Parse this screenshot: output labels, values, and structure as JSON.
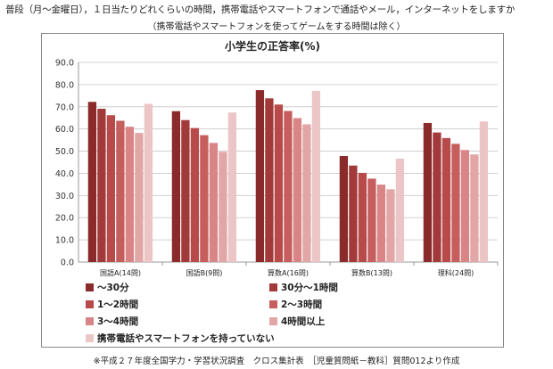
{
  "header": {
    "question": "普段（月〜金曜日），１日当たりどれくらいの時間，携帯電話やスマートフォンで通話やメール，インターネットをしますか",
    "note": "（携帯電話やスマートフォンを使ってゲームをする時間は除く）"
  },
  "source": "※平成２７年度全国学力・学習状況調査　クロス集計表　［児童質問紙－教科］質問012より作成",
  "chart_data": {
    "type": "bar",
    "title": "小学生の正答率(%)",
    "xlabel": "",
    "ylabel": "",
    "ylim": [
      0,
      90
    ],
    "yticks": [
      "0.0",
      "10.0",
      "20.0",
      "30.0",
      "40.0",
      "50.0",
      "60.0",
      "70.0",
      "80.0",
      "90.0"
    ],
    "grid": true,
    "legend_position": "bottom",
    "categories": [
      "国語A(14問)",
      "国語B(9問)",
      "算数A(16問)",
      "算数B(13問)",
      "理科(24問)"
    ],
    "series": [
      {
        "name": "〜30分",
        "color": "#8b2a2a",
        "values": [
          72.2,
          68.0,
          77.5,
          47.8,
          62.7
        ]
      },
      {
        "name": "30分〜1時間",
        "color": "#a33a3a",
        "values": [
          69.1,
          64.0,
          73.8,
          43.5,
          58.4
        ]
      },
      {
        "name": "1〜2時間",
        "color": "#b84a4a",
        "values": [
          66.2,
          60.4,
          71.0,
          40.2,
          55.9
        ]
      },
      {
        "name": "2〜3時間",
        "color": "#c65e5e",
        "values": [
          63.7,
          57.2,
          68.1,
          37.6,
          53.3
        ]
      },
      {
        "name": "3〜4時間",
        "color": "#d98585",
        "values": [
          61.0,
          53.7,
          64.9,
          34.9,
          50.5
        ]
      },
      {
        "name": "4時間以上",
        "color": "#e2a6a6",
        "values": [
          58.2,
          49.7,
          62.1,
          32.8,
          48.5
        ]
      },
      {
        "name": "携帯電話やスマートフォンを持っていない",
        "color": "#ecc6c6",
        "values": [
          71.3,
          67.4,
          77.2,
          46.6,
          63.4
        ]
      }
    ]
  }
}
